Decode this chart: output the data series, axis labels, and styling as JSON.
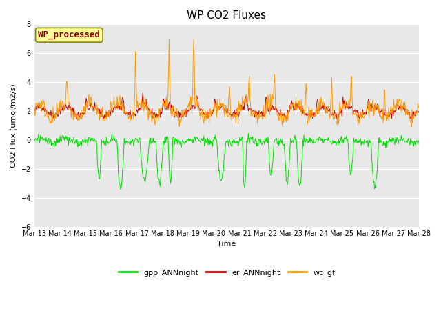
{
  "title": "WP CO2 Fluxes",
  "xlabel": "Time",
  "ylabel": "CO2 Flux (umol/m2/s)",
  "ylim": [
    -6,
    8
  ],
  "yticks": [
    -6,
    -4,
    -2,
    0,
    2,
    4,
    6,
    8
  ],
  "n_days": 15,
  "n_per_day": 48,
  "start_day": 13,
  "colors": {
    "gpp": "#00dd00",
    "er": "#cc0000",
    "wc": "#ff9900"
  },
  "linewidths": {
    "gpp": 0.7,
    "er": 0.7,
    "wc": 0.7
  },
  "legend_entries": [
    "gpp_ANNnight",
    "er_ANNnight",
    "wc_gf"
  ],
  "wp_label": "WP_processed",
  "wp_label_color": "#880000",
  "wp_box_facecolor": "#ffff99",
  "wp_box_edgecolor": "#888800",
  "bg_color": "#e8e8e8",
  "fig_bg": "#ffffff",
  "grid_color": "#ffffff",
  "title_fontsize": 11,
  "tick_fontsize": 7,
  "label_fontsize": 8,
  "legend_fontsize": 8
}
